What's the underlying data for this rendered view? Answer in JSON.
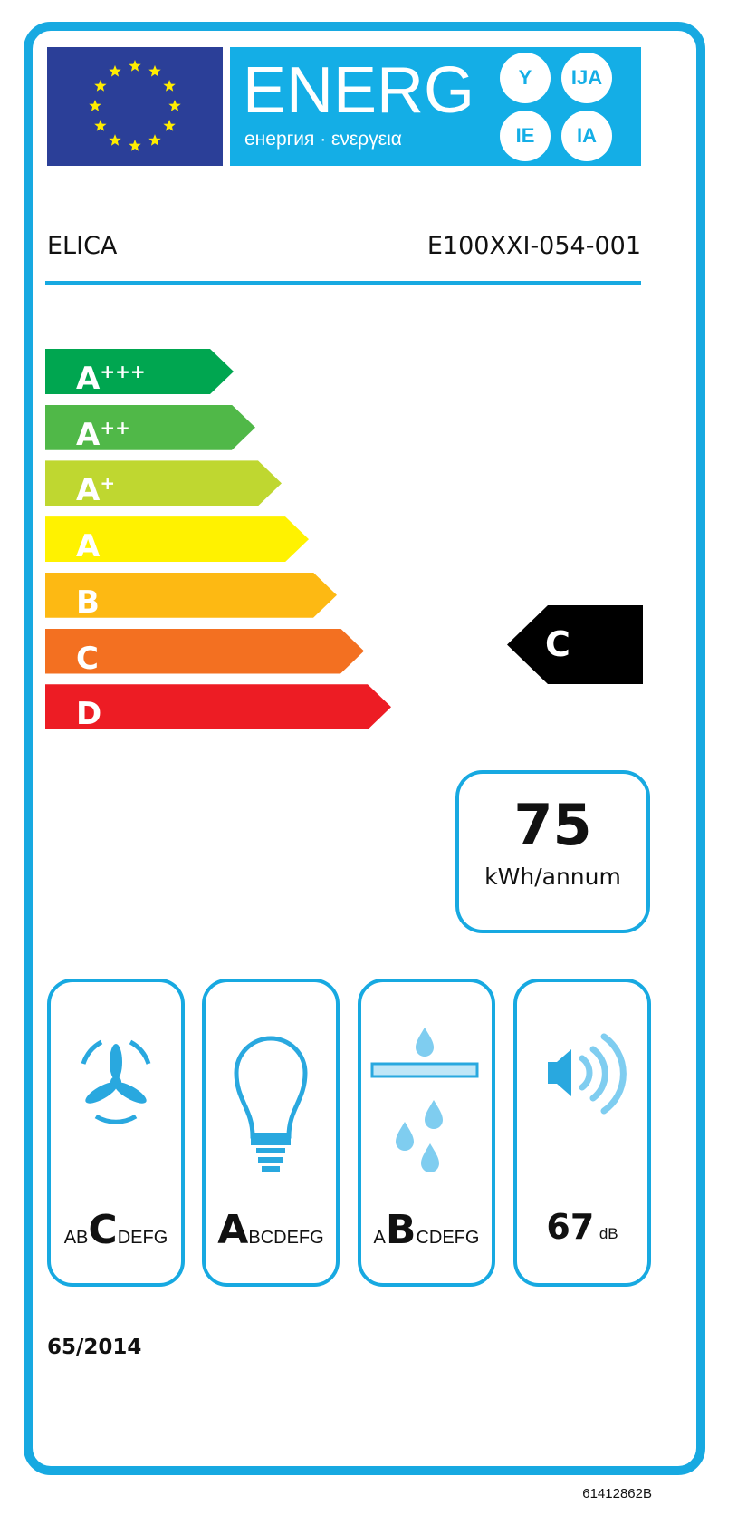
{
  "header": {
    "title": "ENERG",
    "subtitle": "енергия · ενεργεια",
    "suffixes": [
      "Y",
      "IJA",
      "IE",
      "IA"
    ]
  },
  "supplier": "ELICA",
  "model": "E100XXI-054-001",
  "scale": [
    {
      "letter": "A",
      "plus": "+++",
      "color": "#00a650"
    },
    {
      "letter": "A",
      "plus": "++",
      "color": "#50b848"
    },
    {
      "letter": "A",
      "plus": "+",
      "color": "#bfd730"
    },
    {
      "letter": "A",
      "plus": "",
      "color": "#fff200"
    },
    {
      "letter": "B",
      "plus": "",
      "color": "#fdb913"
    },
    {
      "letter": "C",
      "plus": "",
      "color": "#f37021"
    },
    {
      "letter": "D",
      "plus": "",
      "color": "#ed1c24"
    }
  ],
  "rating": "C",
  "consumption": {
    "value": "75",
    "unit": "kWh/annum"
  },
  "fluid_dynamic": {
    "pre": "AB",
    "sel": "C",
    "post": "DEFG",
    "icon": "fan-icon"
  },
  "lighting": {
    "pre": "",
    "sel": "A",
    "post": "BCDEFG",
    "icon": "lightbulb-icon"
  },
  "grease": {
    "pre": "A",
    "sel": "B",
    "post": "CDEFG",
    "icon": "grease-filter-icon"
  },
  "noise": {
    "value": "67",
    "unit": "dB",
    "icon": "speaker-icon"
  },
  "regulation": "65/2014",
  "code": "61412862B",
  "colors": {
    "frame": "#17a9e1",
    "eu_blue": "#2b3f98",
    "star": "#ffed00"
  }
}
